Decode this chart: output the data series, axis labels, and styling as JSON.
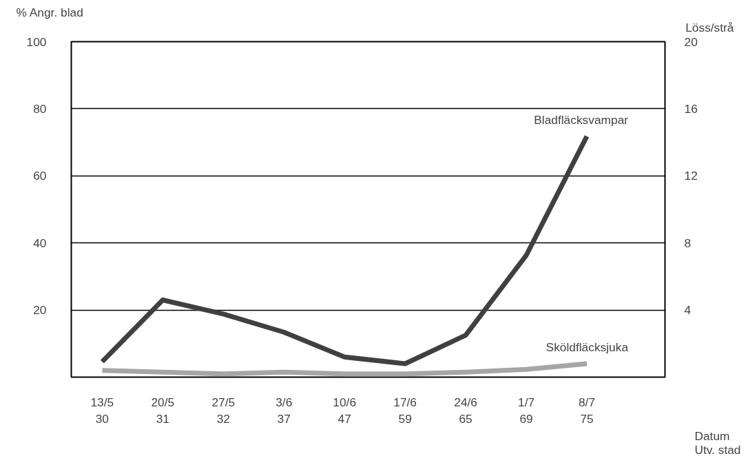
{
  "chart_data": {
    "type": "line",
    "ylabel": "% Angr. blad",
    "y2label": "Löss/strå",
    "xlabel": "Datum\nUtv. stad",
    "categories": [
      "13/5\n30",
      "20/5\n31",
      "27/5\n32",
      "3/6\n37",
      "10/6\n47",
      "17/6\n59",
      "24/6\n65",
      "1/7\n69",
      "8/7\n75"
    ],
    "ylim": [
      0,
      100
    ],
    "yticks": [
      20,
      40,
      60,
      80,
      100
    ],
    "y2lim": [
      0,
      20
    ],
    "y2ticks": [
      4,
      8,
      12,
      16,
      20
    ],
    "grid": "y",
    "marker": "none",
    "line_style": "solid",
    "series": [
      {
        "name": "Bladfläcksvampar",
        "color": "#404040",
        "values": [
          4.6,
          23,
          18.8,
          13.4,
          6,
          4,
          12.5,
          36.3,
          71.8
        ]
      },
      {
        "name": "Sköldfläcksjuka",
        "color": "#a6a6a6",
        "values": [
          2,
          1.5,
          1,
          1.5,
          1,
          1,
          1.5,
          2.3,
          4
        ]
      }
    ]
  }
}
